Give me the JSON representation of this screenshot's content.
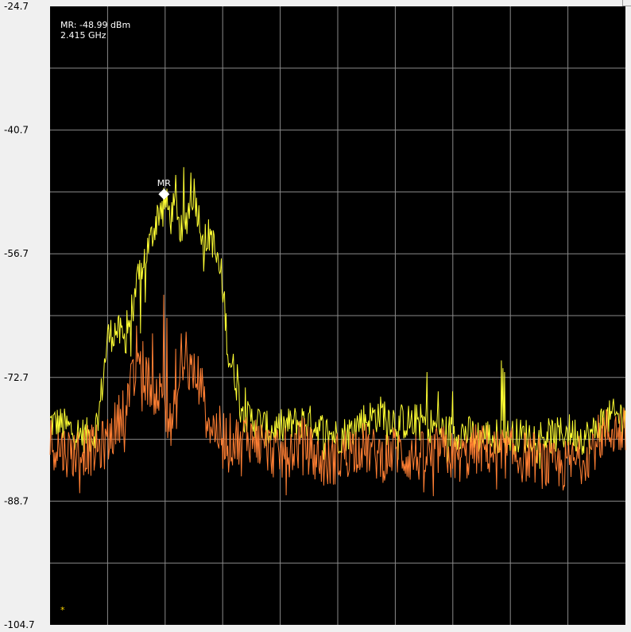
{
  "chart_data": {
    "type": "line",
    "title": "",
    "xlabel": "",
    "ylabel": "",
    "ylim": [
      -104.7,
      -24.7
    ],
    "y_ticks": [
      "-24.7",
      "-40.7",
      "-56.7",
      "-72.7",
      "-88.7",
      "-104.7"
    ],
    "grid": true,
    "x_divisions": 10,
    "y_divisions": 10,
    "background": "#000000",
    "marker": {
      "label": "MR",
      "readout_line1": "MR: -48.99 dBm",
      "readout_line2": "2.415 GHz",
      "value_dbm": -48.99,
      "x_fraction": 0.198
    },
    "footnote": "*",
    "series": [
      {
        "color": "#ffff33",
        "points": [
          [
            0,
            -78.5
          ],
          [
            0.02,
            -78.8
          ],
          [
            0.04,
            -79.6
          ],
          [
            0.06,
            -80.2
          ],
          [
            0.075,
            -80.3
          ],
          [
            0.085,
            -77.5
          ],
          [
            0.1,
            -67.5
          ],
          [
            0.115,
            -66.5
          ],
          [
            0.13,
            -68
          ],
          [
            0.145,
            -63
          ],
          [
            0.16,
            -58
          ],
          [
            0.175,
            -55
          ],
          [
            0.185,
            -52
          ],
          [
            0.198,
            -49.5
          ],
          [
            0.21,
            -52
          ],
          [
            0.22,
            -50
          ],
          [
            0.23,
            -55
          ],
          [
            0.24,
            -51
          ],
          [
            0.25,
            -48.5
          ],
          [
            0.26,
            -52.5
          ],
          [
            0.27,
            -55
          ],
          [
            0.28,
            -54
          ],
          [
            0.29,
            -58
          ],
          [
            0.3,
            -60
          ],
          [
            0.31,
            -70
          ],
          [
            0.32,
            -72
          ],
          [
            0.33,
            -75.5
          ],
          [
            0.34,
            -78
          ],
          [
            0.36,
            -78.3
          ],
          [
            0.38,
            -79.6
          ],
          [
            0.4,
            -79.2
          ],
          [
            0.42,
            -78.8
          ],
          [
            0.44,
            -78.3
          ],
          [
            0.46,
            -78.8
          ],
          [
            0.48,
            -79.8
          ],
          [
            0.5,
            -80.3
          ],
          [
            0.52,
            -79.8
          ],
          [
            0.54,
            -78.3
          ],
          [
            0.56,
            -77.8
          ],
          [
            0.58,
            -77.2
          ],
          [
            0.6,
            -78.3
          ],
          [
            0.62,
            -78.5
          ],
          [
            0.64,
            -78.3
          ],
          [
            0.66,
            -78.8
          ],
          [
            0.68,
            -79.6
          ],
          [
            0.7,
            -79.8
          ],
          [
            0.72,
            -79.8
          ],
          [
            0.74,
            -80.3
          ],
          [
            0.76,
            -80.3
          ],
          [
            0.78,
            -80.3
          ],
          [
            0.8,
            -80.3
          ],
          [
            0.82,
            -80.3
          ],
          [
            0.84,
            -80.1
          ],
          [
            0.86,
            -80.3
          ],
          [
            0.88,
            -80.3
          ],
          [
            0.9,
            -79.6
          ],
          [
            0.92,
            -80.3
          ],
          [
            0.94,
            -80.3
          ],
          [
            0.96,
            -78.3
          ],
          [
            0.98,
            -77.8
          ],
          [
            1,
            -77.5
          ]
        ],
        "spikes": [
          [
            0.13,
            -67
          ],
          [
            0.134,
            -64
          ],
          [
            0.14,
            -70
          ],
          [
            0.146,
            -62.6
          ],
          [
            0.157,
            -67
          ],
          [
            0.165,
            -63
          ],
          [
            0.218,
            -46.5
          ],
          [
            0.232,
            -45.5
          ],
          [
            0.245,
            -46.2
          ],
          [
            0.274,
            -56
          ],
          [
            0.29,
            -56.5
          ],
          [
            0.3,
            -63
          ],
          [
            0.325,
            -71
          ],
          [
            0.34,
            -74
          ],
          [
            0.655,
            -72
          ],
          [
            0.675,
            -74.5
          ],
          [
            0.7,
            -74.5
          ],
          [
            0.785,
            -70.5
          ],
          [
            0.787,
            -71.5
          ],
          [
            0.79,
            -72
          ]
        ]
      },
      {
        "color": "#ff7f33",
        "points": [
          [
            0,
            -81
          ],
          [
            0.02,
            -82
          ],
          [
            0.04,
            -82.5
          ],
          [
            0.06,
            -82
          ],
          [
            0.08,
            -82.2
          ],
          [
            0.1,
            -81
          ],
          [
            0.12,
            -78
          ],
          [
            0.14,
            -74
          ],
          [
            0.16,
            -72
          ],
          [
            0.18,
            -74
          ],
          [
            0.2,
            -75.5
          ],
          [
            0.21,
            -79.5
          ],
          [
            0.22,
            -76
          ],
          [
            0.23,
            -71.5
          ],
          [
            0.245,
            -72
          ],
          [
            0.26,
            -73
          ],
          [
            0.27,
            -77
          ],
          [
            0.28,
            -79
          ],
          [
            0.3,
            -80
          ],
          [
            0.32,
            -81
          ],
          [
            0.34,
            -80
          ],
          [
            0.36,
            -81
          ],
          [
            0.38,
            -82
          ],
          [
            0.4,
            -83
          ],
          [
            0.42,
            -82
          ],
          [
            0.44,
            -81
          ],
          [
            0.46,
            -83
          ],
          [
            0.48,
            -84
          ],
          [
            0.5,
            -83
          ],
          [
            0.52,
            -82
          ],
          [
            0.54,
            -81.5
          ],
          [
            0.56,
            -82.5
          ],
          [
            0.58,
            -83
          ],
          [
            0.6,
            -82
          ],
          [
            0.62,
            -83
          ],
          [
            0.64,
            -83
          ],
          [
            0.66,
            -83
          ],
          [
            0.68,
            -82
          ],
          [
            0.7,
            -83
          ],
          [
            0.72,
            -83
          ],
          [
            0.74,
            -82
          ],
          [
            0.76,
            -82
          ],
          [
            0.78,
            -82.5
          ],
          [
            0.8,
            -82.5
          ],
          [
            0.82,
            -83
          ],
          [
            0.84,
            -83
          ],
          [
            0.86,
            -84
          ],
          [
            0.88,
            -84.5
          ],
          [
            0.9,
            -84
          ],
          [
            0.92,
            -83.5
          ],
          [
            0.94,
            -82
          ],
          [
            0.96,
            -80
          ],
          [
            0.98,
            -79.5
          ],
          [
            1,
            -80
          ]
        ],
        "spikes": [
          [
            0.15,
            -66
          ],
          [
            0.154,
            -70
          ],
          [
            0.162,
            -68
          ],
          [
            0.168,
            -71
          ],
          [
            0.178,
            -67
          ],
          [
            0.198,
            -62
          ],
          [
            0.203,
            -65
          ],
          [
            0.218,
            -69
          ],
          [
            0.228,
            -67
          ],
          [
            0.236,
            -66.8
          ],
          [
            0.255,
            -73.5
          ],
          [
            0.262,
            -71.5
          ],
          [
            0.35,
            -79
          ],
          [
            0.36,
            -79
          ],
          [
            0.3,
            -84.5
          ],
          [
            0.31,
            -85
          ],
          [
            0.333,
            -85.5
          ],
          [
            0.505,
            -85.5
          ],
          [
            0.7,
            -82.5
          ],
          [
            0.7,
            -84.5
          ]
        ]
      }
    ]
  }
}
